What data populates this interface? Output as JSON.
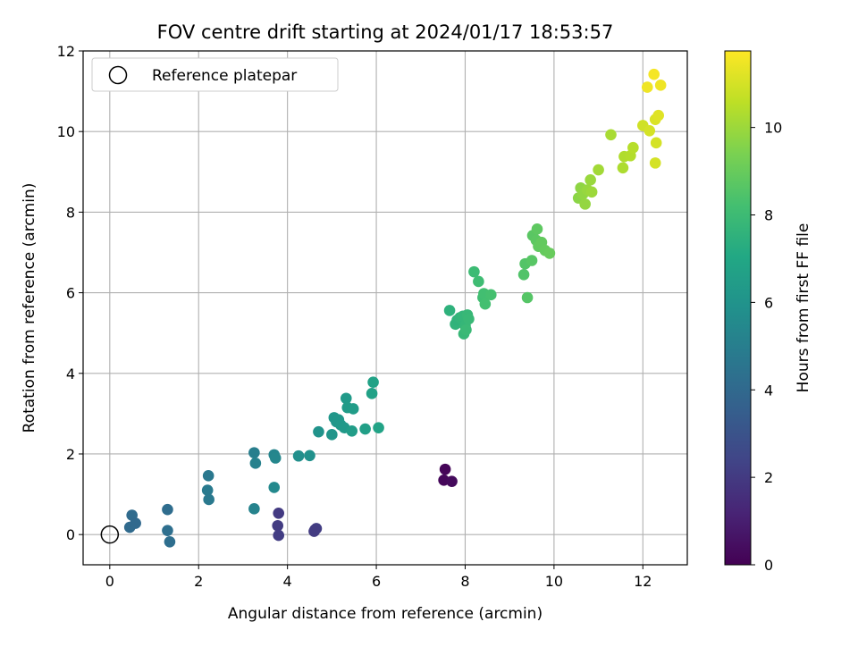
{
  "chart_data": {
    "type": "scatter",
    "title": "FOV centre drift starting at 2024/01/17 18:53:57",
    "xlabel": "Angular distance from reference (arcmin)",
    "ylabel": "Rotation from reference (arcmin)",
    "xlim": [
      -0.6,
      13.0
    ],
    "ylim": [
      -0.75,
      12.0
    ],
    "xticks": [
      0,
      2,
      4,
      6,
      8,
      10,
      12
    ],
    "yticks": [
      0,
      2,
      4,
      6,
      8,
      10,
      12
    ],
    "grid": true,
    "legend": {
      "placement": "top-left",
      "entries": [
        "Reference platepar"
      ]
    },
    "reference_point": {
      "x": 0,
      "y": 0
    },
    "colorbar": {
      "label": "Hours from first FF file",
      "range": [
        0,
        11.75
      ],
      "ticks": [
        0,
        2,
        4,
        6,
        8,
        10
      ],
      "colormap": "viridis"
    },
    "points": [
      {
        "x": 7.55,
        "y": 1.62,
        "h": 0.15
      },
      {
        "x": 7.52,
        "y": 1.35,
        "h": 0.2
      },
      {
        "x": 7.7,
        "y": 1.32,
        "h": 0.3
      },
      {
        "x": 3.8,
        "y": 0.53,
        "h": 2.0
      },
      {
        "x": 3.78,
        "y": 0.22,
        "h": 2.05
      },
      {
        "x": 3.8,
        "y": -0.02,
        "h": 2.1
      },
      {
        "x": 4.62,
        "y": 0.12,
        "h": 2.0
      },
      {
        "x": 4.65,
        "y": 0.15,
        "h": 2.1
      },
      {
        "x": 4.6,
        "y": 0.08,
        "h": 2.05
      },
      {
        "x": 0.5,
        "y": 0.48,
        "h": 4.1
      },
      {
        "x": 0.45,
        "y": 0.18,
        "h": 4.05
      },
      {
        "x": 0.58,
        "y": 0.28,
        "h": 4.0
      },
      {
        "x": 1.3,
        "y": 0.62,
        "h": 4.2
      },
      {
        "x": 1.3,
        "y": 0.1,
        "h": 4.3
      },
      {
        "x": 1.35,
        "y": -0.18,
        "h": 4.25
      },
      {
        "x": 2.22,
        "y": 1.46,
        "h": 4.7
      },
      {
        "x": 2.2,
        "y": 1.1,
        "h": 4.8
      },
      {
        "x": 2.23,
        "y": 0.87,
        "h": 4.75
      },
      {
        "x": 3.25,
        "y": 2.03,
        "h": 5.0
      },
      {
        "x": 3.28,
        "y": 1.77,
        "h": 5.1
      },
      {
        "x": 3.25,
        "y": 0.64,
        "h": 5.2
      },
      {
        "x": 3.7,
        "y": 1.98,
        "h": 5.3
      },
      {
        "x": 3.73,
        "y": 1.9,
        "h": 5.4
      },
      {
        "x": 3.7,
        "y": 1.17,
        "h": 5.5
      },
      {
        "x": 4.25,
        "y": 1.95,
        "h": 5.8
      },
      {
        "x": 4.5,
        "y": 1.96,
        "h": 5.9
      },
      {
        "x": 4.7,
        "y": 2.55,
        "h": 6.0
      },
      {
        "x": 5.0,
        "y": 2.48,
        "h": 6.1
      },
      {
        "x": 5.05,
        "y": 2.9,
        "h": 6.2
      },
      {
        "x": 5.1,
        "y": 2.8,
        "h": 6.15
      },
      {
        "x": 5.15,
        "y": 2.85,
        "h": 6.2
      },
      {
        "x": 5.2,
        "y": 2.72,
        "h": 6.25
      },
      {
        "x": 5.28,
        "y": 2.65,
        "h": 6.3
      },
      {
        "x": 5.32,
        "y": 3.38,
        "h": 6.35
      },
      {
        "x": 5.35,
        "y": 3.15,
        "h": 6.4
      },
      {
        "x": 5.48,
        "y": 3.12,
        "h": 6.45
      },
      {
        "x": 5.45,
        "y": 2.57,
        "h": 6.5
      },
      {
        "x": 5.75,
        "y": 2.62,
        "h": 6.6
      },
      {
        "x": 5.9,
        "y": 3.5,
        "h": 6.7
      },
      {
        "x": 5.93,
        "y": 3.78,
        "h": 6.75
      },
      {
        "x": 6.05,
        "y": 2.65,
        "h": 6.8
      },
      {
        "x": 7.65,
        "y": 5.56,
        "h": 7.5
      },
      {
        "x": 7.78,
        "y": 5.22,
        "h": 7.6
      },
      {
        "x": 7.82,
        "y": 5.32,
        "h": 7.55
      },
      {
        "x": 7.88,
        "y": 5.38,
        "h": 7.65
      },
      {
        "x": 7.95,
        "y": 5.42,
        "h": 7.7
      },
      {
        "x": 8.0,
        "y": 5.18,
        "h": 7.75
      },
      {
        "x": 8.05,
        "y": 5.45,
        "h": 7.8
      },
      {
        "x": 8.08,
        "y": 5.35,
        "h": 7.85
      },
      {
        "x": 7.97,
        "y": 4.98,
        "h": 7.8
      },
      {
        "x": 8.02,
        "y": 5.08,
        "h": 7.9
      },
      {
        "x": 8.2,
        "y": 6.52,
        "h": 8.0
      },
      {
        "x": 8.3,
        "y": 6.28,
        "h": 8.05
      },
      {
        "x": 8.4,
        "y": 5.88,
        "h": 8.1
      },
      {
        "x": 8.42,
        "y": 5.98,
        "h": 8.15
      },
      {
        "x": 8.45,
        "y": 5.72,
        "h": 8.2
      },
      {
        "x": 8.58,
        "y": 5.95,
        "h": 8.25
      },
      {
        "x": 9.32,
        "y": 6.45,
        "h": 8.5
      },
      {
        "x": 9.35,
        "y": 6.72,
        "h": 8.55
      },
      {
        "x": 9.4,
        "y": 5.88,
        "h": 8.6
      },
      {
        "x": 9.5,
        "y": 6.8,
        "h": 8.65
      },
      {
        "x": 9.52,
        "y": 7.42,
        "h": 8.7
      },
      {
        "x": 9.6,
        "y": 7.3,
        "h": 8.75
      },
      {
        "x": 9.62,
        "y": 7.58,
        "h": 8.8
      },
      {
        "x": 9.65,
        "y": 7.15,
        "h": 8.85
      },
      {
        "x": 9.72,
        "y": 7.25,
        "h": 8.9
      },
      {
        "x": 9.8,
        "y": 7.05,
        "h": 8.95
      },
      {
        "x": 9.9,
        "y": 6.98,
        "h": 9.0
      },
      {
        "x": 10.55,
        "y": 8.35,
        "h": 9.7
      },
      {
        "x": 10.6,
        "y": 8.6,
        "h": 9.75
      },
      {
        "x": 10.65,
        "y": 8.45,
        "h": 9.8
      },
      {
        "x": 10.7,
        "y": 8.2,
        "h": 9.85
      },
      {
        "x": 10.75,
        "y": 8.55,
        "h": 9.9
      },
      {
        "x": 10.82,
        "y": 8.8,
        "h": 9.95
      },
      {
        "x": 10.85,
        "y": 8.5,
        "h": 10.0
      },
      {
        "x": 11.0,
        "y": 9.05,
        "h": 10.1
      },
      {
        "x": 11.28,
        "y": 9.92,
        "h": 10.2
      },
      {
        "x": 11.55,
        "y": 9.1,
        "h": 10.3
      },
      {
        "x": 11.58,
        "y": 9.38,
        "h": 10.35
      },
      {
        "x": 11.72,
        "y": 9.4,
        "h": 10.4
      },
      {
        "x": 11.78,
        "y": 9.6,
        "h": 10.45
      },
      {
        "x": 12.0,
        "y": 10.15,
        "h": 10.9
      },
      {
        "x": 12.1,
        "y": 11.1,
        "h": 11.5
      },
      {
        "x": 12.15,
        "y": 10.02,
        "h": 11.0
      },
      {
        "x": 12.25,
        "y": 11.42,
        "h": 11.6
      },
      {
        "x": 12.28,
        "y": 10.3,
        "h": 11.1
      },
      {
        "x": 12.3,
        "y": 9.72,
        "h": 11.0
      },
      {
        "x": 12.28,
        "y": 9.22,
        "h": 11.0
      },
      {
        "x": 12.35,
        "y": 10.4,
        "h": 11.2
      },
      {
        "x": 12.4,
        "y": 11.15,
        "h": 11.5
      }
    ]
  }
}
